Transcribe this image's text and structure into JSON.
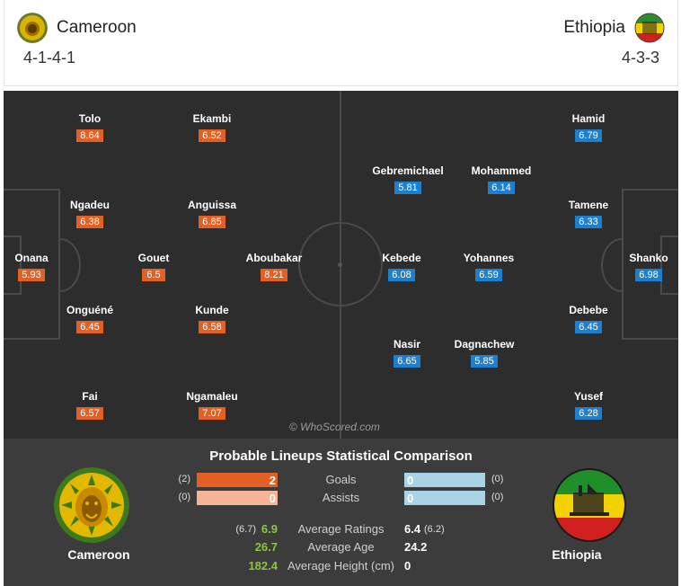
{
  "header": {
    "home": {
      "name": "Cameroon",
      "formation": "4-1-4-1"
    },
    "away": {
      "name": "Ethiopia",
      "formation": "4-3-3"
    }
  },
  "pitch": {
    "watermark": "© WhoScored.com",
    "home_players": [
      {
        "name": "Onana",
        "rating": "5.93"
      },
      {
        "name": "Tolo",
        "rating": "8.64"
      },
      {
        "name": "Ngadeu",
        "rating": "6.38"
      },
      {
        "name": "Onguéné",
        "rating": "6.45"
      },
      {
        "name": "Fai",
        "rating": "6.57"
      },
      {
        "name": "Gouet",
        "rating": "6.5"
      },
      {
        "name": "Ekambi",
        "rating": "6.52"
      },
      {
        "name": "Anguissa",
        "rating": "6.85"
      },
      {
        "name": "Kunde",
        "rating": "6.58"
      },
      {
        "name": "Ngamaleu",
        "rating": "7.07"
      },
      {
        "name": "Aboubakar",
        "rating": "8.21"
      }
    ],
    "away_players": [
      {
        "name": "Shanko",
        "rating": "6.98"
      },
      {
        "name": "Hamid",
        "rating": "6.79"
      },
      {
        "name": "Tamene",
        "rating": "6.33"
      },
      {
        "name": "Debebe",
        "rating": "6.45"
      },
      {
        "name": "Yusef",
        "rating": "6.28"
      },
      {
        "name": "Gebremichael",
        "rating": "5.81"
      },
      {
        "name": "Mohammed",
        "rating": "6.14"
      },
      {
        "name": "Kebede",
        "rating": "6.08"
      },
      {
        "name": "Yohannes",
        "rating": "6.59"
      },
      {
        "name": "Nasir",
        "rating": "6.65"
      },
      {
        "name": "Dagnachew",
        "rating": "5.85"
      }
    ]
  },
  "comparison": {
    "title": "Probable Lineups Statistical Comparison",
    "home_name": "Cameroon",
    "away_name": "Ethiopia",
    "bars": [
      {
        "label": "Goals",
        "home_prev": "(2)",
        "home_value": "2",
        "home_fill": 1.0,
        "away_value": "0",
        "away_prev": "(0)",
        "away_fill": 0
      },
      {
        "label": "Assists",
        "home_prev": "(0)",
        "home_value": "0",
        "home_fill": 0,
        "away_value": "0",
        "away_prev": "(0)",
        "away_fill": 0
      }
    ],
    "averages": [
      {
        "label": "Average Ratings",
        "home_prev": "(6.7)",
        "home_value": "6.9",
        "away_value": "6.4",
        "away_prev": "(6.2)"
      },
      {
        "label": "Average Age",
        "home_prev": "",
        "home_value": "26.7",
        "away_value": "24.2",
        "away_prev": ""
      },
      {
        "label": "Average Height (cm)",
        "home_prev": "",
        "home_value": "182.4",
        "away_value": "0",
        "away_prev": ""
      }
    ]
  },
  "colors": {
    "home_accent": "#e26024",
    "away_accent": "#1f7fcf",
    "pitch": "#2d2d2d",
    "panel": "#3c3c3c",
    "better_value": "#8dc63f"
  },
  "icons": {
    "home_badge": "cameroon-lion-crest-icon",
    "away_badge": "ethiopia-crest-icon"
  }
}
